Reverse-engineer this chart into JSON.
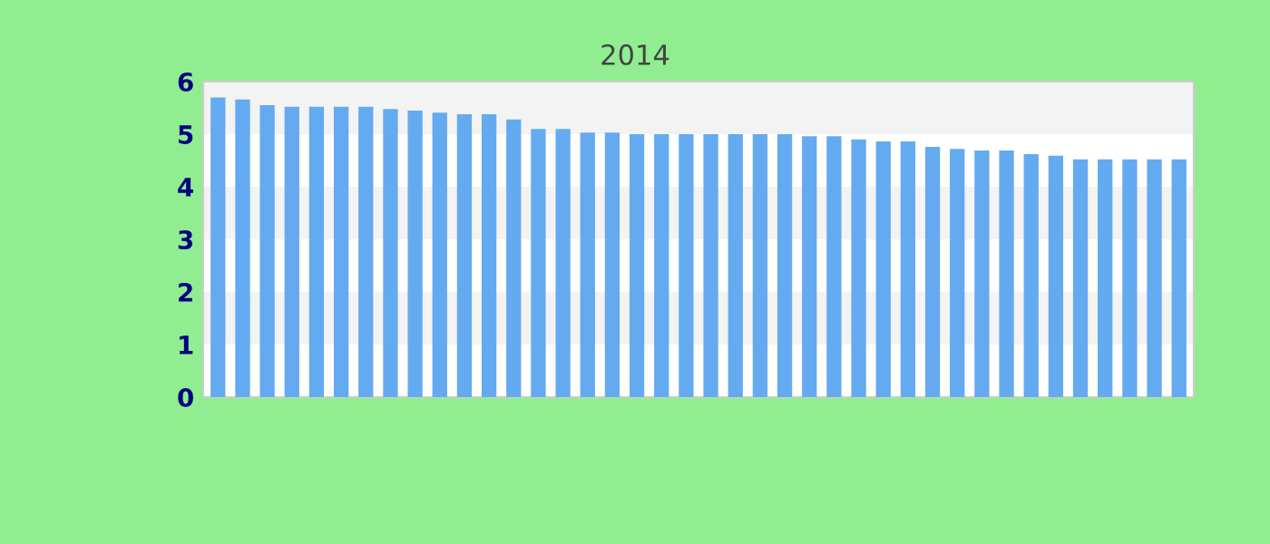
{
  "chart_data": {
    "type": "bar",
    "subtitle": "2014",
    "categories": [
      null,
      null,
      null,
      null,
      null,
      null,
      null,
      null,
      null,
      null,
      null,
      null,
      null,
      null,
      null,
      null,
      null,
      null,
      null,
      null,
      null,
      null,
      null,
      null,
      null,
      null,
      null,
      null,
      null,
      null,
      null,
      null,
      null,
      null,
      null,
      null,
      null,
      null,
      null,
      null
    ],
    "values": [
      5.7,
      5.66,
      5.55,
      5.52,
      5.52,
      5.52,
      5.52,
      5.48,
      5.45,
      5.41,
      5.38,
      5.38,
      5.28,
      5.1,
      5.1,
      5.03,
      5.03,
      5.0,
      5.0,
      5.0,
      5.0,
      5.0,
      5.0,
      5.0,
      4.96,
      4.96,
      4.9,
      4.86,
      4.86,
      4.76,
      4.72,
      4.69,
      4.69,
      4.62,
      4.59,
      4.52,
      4.52,
      4.52,
      4.52,
      4.52
    ],
    "color": "#64aaf0",
    "ylim": [
      0,
      6
    ],
    "yticks": [
      0,
      1,
      2,
      3,
      4,
      5,
      6
    ],
    "bands": [
      {
        "axis": "y",
        "from": 1,
        "to": 2,
        "color": "#f3f3f3"
      },
      {
        "axis": "y",
        "from": 3,
        "to": 4,
        "color": "#f3f3f3"
      },
      {
        "axis": "y",
        "from": 5,
        "to": 6,
        "color": "#f3f3f3"
      }
    ]
  }
}
